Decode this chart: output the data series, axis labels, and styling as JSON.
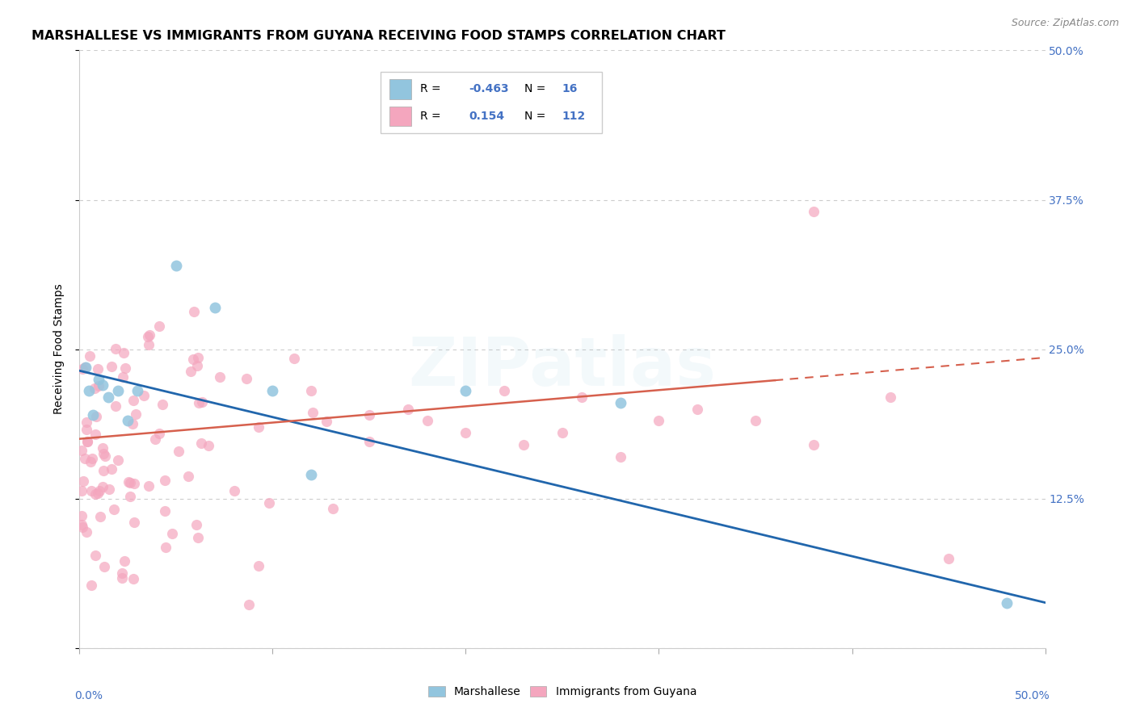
{
  "title": "MARSHALLESE VS IMMIGRANTS FROM GUYANA RECEIVING FOOD STAMPS CORRELATION CHART",
  "source": "Source: ZipAtlas.com",
  "ylabel": "Receiving Food Stamps",
  "xlim": [
    0.0,
    0.5
  ],
  "ylim": [
    0.0,
    0.5
  ],
  "watermark": "ZIPatlas",
  "blue_color": "#92c5de",
  "pink_color": "#f4a6be",
  "line_blue": "#2166ac",
  "line_pink": "#d6604d",
  "title_fontsize": 11.5,
  "source_fontsize": 9,
  "axis_label_fontsize": 10,
  "tick_fontsize": 10,
  "watermark_fontsize": 60,
  "watermark_alpha": 0.1,
  "watermark_color": "#92c5de",
  "grid_color": "#cccccc",
  "blue_line_start_y": 0.232,
  "blue_line_end_y": 0.038,
  "pink_line_start_y": 0.175,
  "pink_line_end_y": 0.243
}
